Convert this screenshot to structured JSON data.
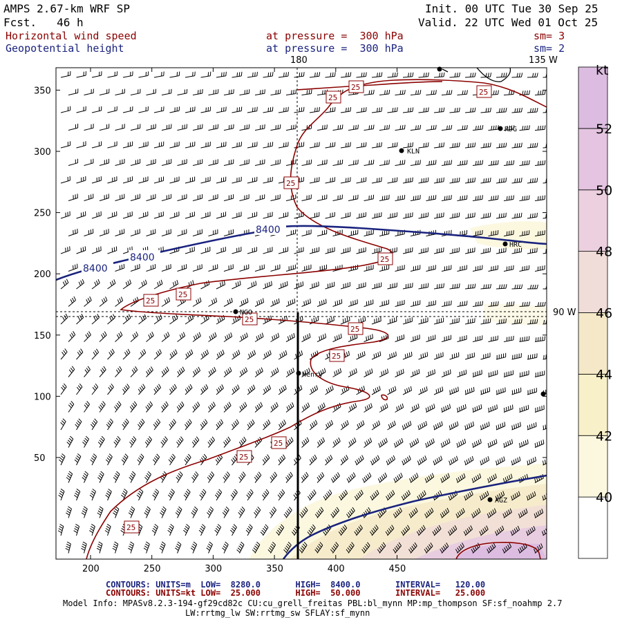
{
  "header": {
    "model": "AMPS 2.67-km WRF SP",
    "fcst": "Fcst.   46 h",
    "init": "Init. 00 UTC Tue 30 Sep 25",
    "valid": "Valid. 22 UTC Wed 01 Oct 25",
    "field1": "Horizontal wind speed",
    "field2": "Geopotential height",
    "press1": "at pressure =  300 hPa",
    "press2": "at pressure =  300 hPa",
    "sm1": "sm= 3",
    "sm2": "sm= 2"
  },
  "map": {
    "lon_labels": [
      "180",
      "135 W",
      "90 W"
    ],
    "height_contour_label": "8400",
    "speed_contour_label": "25",
    "stations": [
      "RDG",
      "KLN",
      "HRC",
      "NGO",
      "Henry",
      "AGZ"
    ]
  },
  "axes": {
    "x_ticks": [
      "200",
      "250",
      "300",
      "350",
      "400",
      "450"
    ],
    "y_ticks": [
      "350",
      "300",
      "250",
      "200",
      "150",
      "100",
      "50"
    ]
  },
  "colorbar": {
    "unit": "kt",
    "labels": [
      "52",
      "50",
      "48",
      "46",
      "44",
      "42",
      "40"
    ],
    "colors": [
      "#ffffff",
      "#fcf8e0",
      "#f8f0c8",
      "#f4e8c8",
      "#f0dcd8",
      "#ecd0e0",
      "#e4c4e0",
      "#dcbce0"
    ]
  },
  "footer": {
    "line1": "CONTOURS: UNITS=m  LOW=  8280.0       HIGH=  8400.0       INTERVAL=   120.00",
    "line2": "CONTOURS: UNITS=kt LOW=  25.000       HIGH=  50.000       INTERVAL=   25.000",
    "info1": "Model Info: MPASv8.2.3-194-gf29cd82c CU:cu_grell_freitas PBL:bl_mynn MP:mp_thompson SF:sf_noahmp 2.7",
    "info2": "LW:rrtmg_lw SW:rrtmg_sw SFLAY:sf_mynn"
  }
}
